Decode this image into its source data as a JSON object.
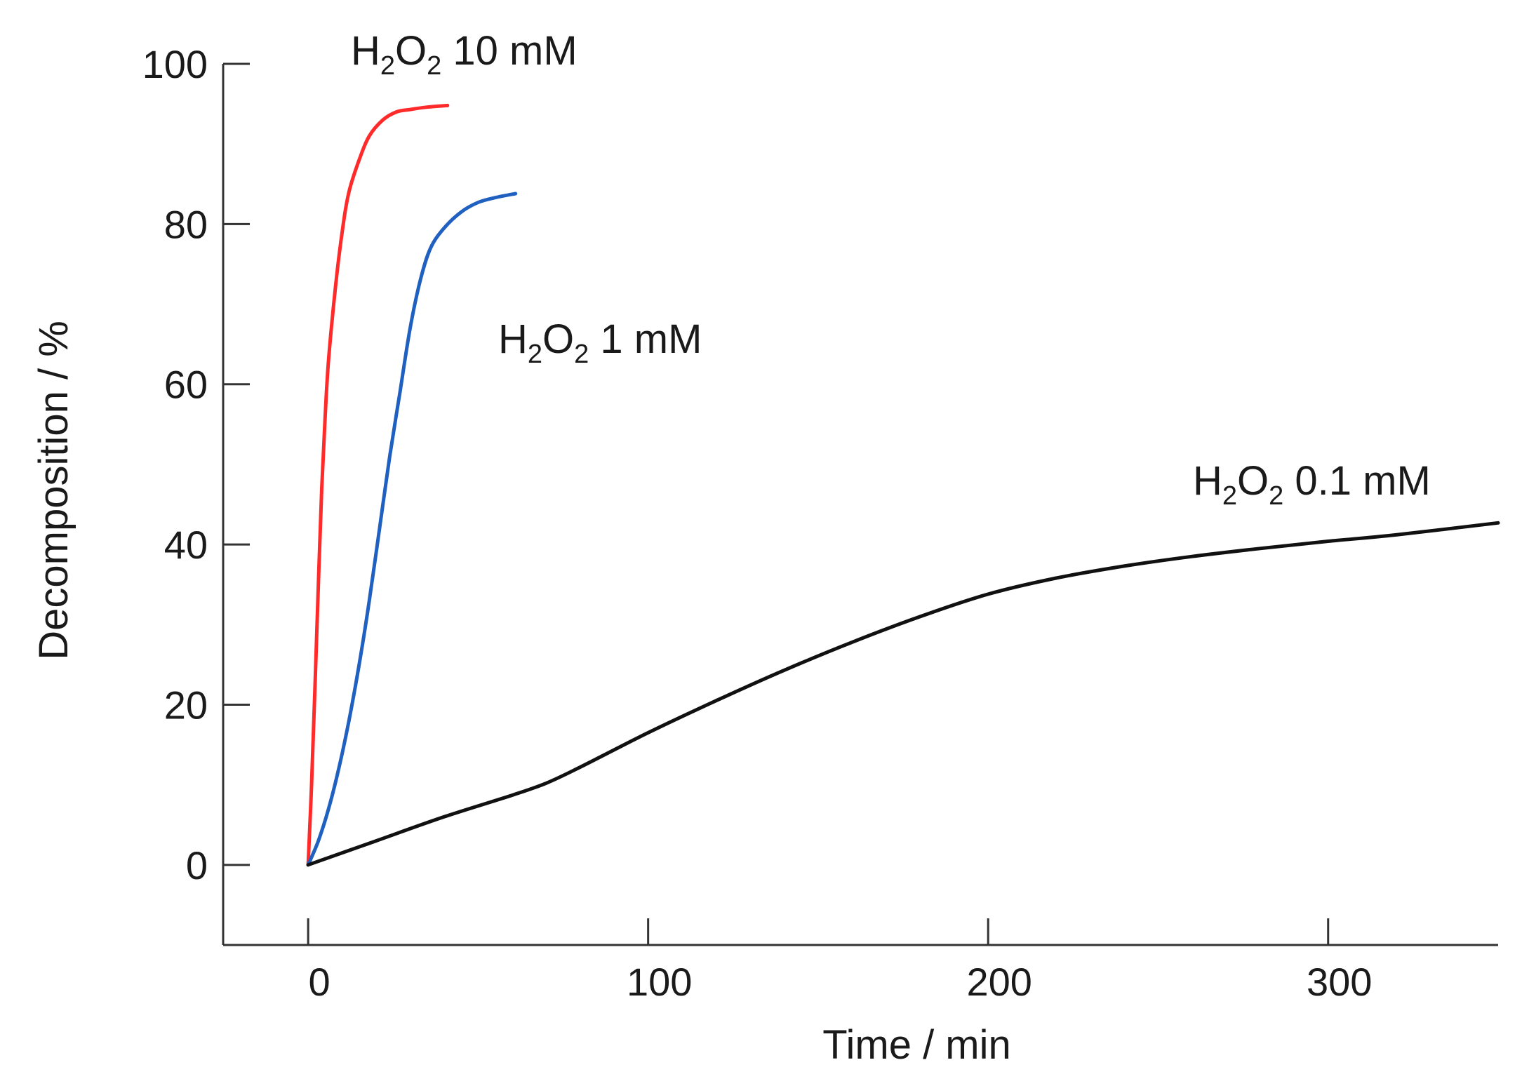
{
  "chart_data": {
    "type": "line",
    "xlabel": "Time / min",
    "ylabel": "Decomposition / %",
    "xlim": [
      -25,
      350
    ],
    "ylim": [
      -10,
      100
    ],
    "xticks": [
      0,
      100,
      200,
      300
    ],
    "yticks": [
      0,
      20,
      40,
      60,
      80,
      100
    ],
    "grid": false,
    "series": [
      {
        "name": "H2O2 10 mM",
        "label_parts": [
          "H",
          "2",
          "O",
          "2",
          " 10 mM"
        ],
        "color": "#ff2a2a",
        "x": [
          0,
          1,
          2,
          3,
          4,
          5,
          6,
          8,
          10,
          12,
          15,
          18,
          22,
          26,
          30,
          35,
          41
        ],
        "y": [
          0,
          10,
          22,
          35,
          47,
          56,
          63,
          72,
          79,
          84,
          88,
          91,
          93,
          94,
          94.3,
          94.6,
          94.8
        ]
      },
      {
        "name": "H2O2 1 mM",
        "label_parts": [
          "H",
          "2",
          "O",
          "2",
          " 1 mM"
        ],
        "color": "#2060c0",
        "x": [
          0,
          3,
          6,
          9,
          12,
          15,
          18,
          21,
          24,
          27,
          30,
          33,
          36,
          40,
          45,
          50,
          55,
          61
        ],
        "y": [
          0,
          3,
          7,
          12,
          18,
          25,
          33,
          42,
          51,
          59,
          67,
          73,
          77,
          79.5,
          81.5,
          82.7,
          83.3,
          83.8
        ]
      },
      {
        "name": "H2O2 0.1 mM",
        "label_parts": [
          "H",
          "2",
          "O",
          "2",
          " 0.1 mM"
        ],
        "color": "#111111",
        "x": [
          0,
          20,
          40,
          60,
          70,
          80,
          100,
          120,
          140,
          160,
          180,
          200,
          220,
          240,
          260,
          280,
          300,
          320,
          350
        ],
        "y": [
          0,
          3,
          6,
          8.7,
          10.2,
          12.2,
          16.5,
          20.5,
          24.3,
          27.8,
          31,
          33.8,
          35.8,
          37.3,
          38.5,
          39.5,
          40.4,
          41.2,
          42.7
        ]
      }
    ]
  }
}
